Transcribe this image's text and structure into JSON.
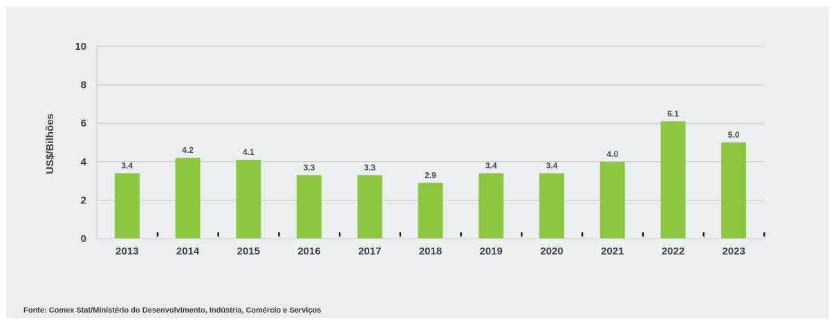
{
  "chart_data": {
    "type": "bar",
    "categories": [
      "2013",
      "2014",
      "2015",
      "2016",
      "2017",
      "2018",
      "2019",
      "2020",
      "2021",
      "2022",
      "2023"
    ],
    "values": [
      3.4,
      4.2,
      4.1,
      3.3,
      3.3,
      2.9,
      3.4,
      3.4,
      4.0,
      6.1,
      5.0
    ],
    "data_labels": [
      "3.4",
      "4.2",
      "4.1",
      "3.3",
      "3.3",
      "2.9",
      "3.4",
      "3.4",
      "4.0",
      "6.1",
      "5.0"
    ],
    "ylabel": "US$/Bilhões",
    "xlabel": "",
    "ylim": [
      0,
      10
    ],
    "yticks": [
      "0",
      "2",
      "4",
      "6",
      "8",
      "10"
    ],
    "grid": "horizontal",
    "bar_color": "#8dc63f",
    "grid_color": "#c9cccc",
    "axis_color": "#1a1a1a"
  },
  "source": "Fonte: Comex Stat/Ministério do Desenvolvimento, Indústria, Comércio e Serviços"
}
